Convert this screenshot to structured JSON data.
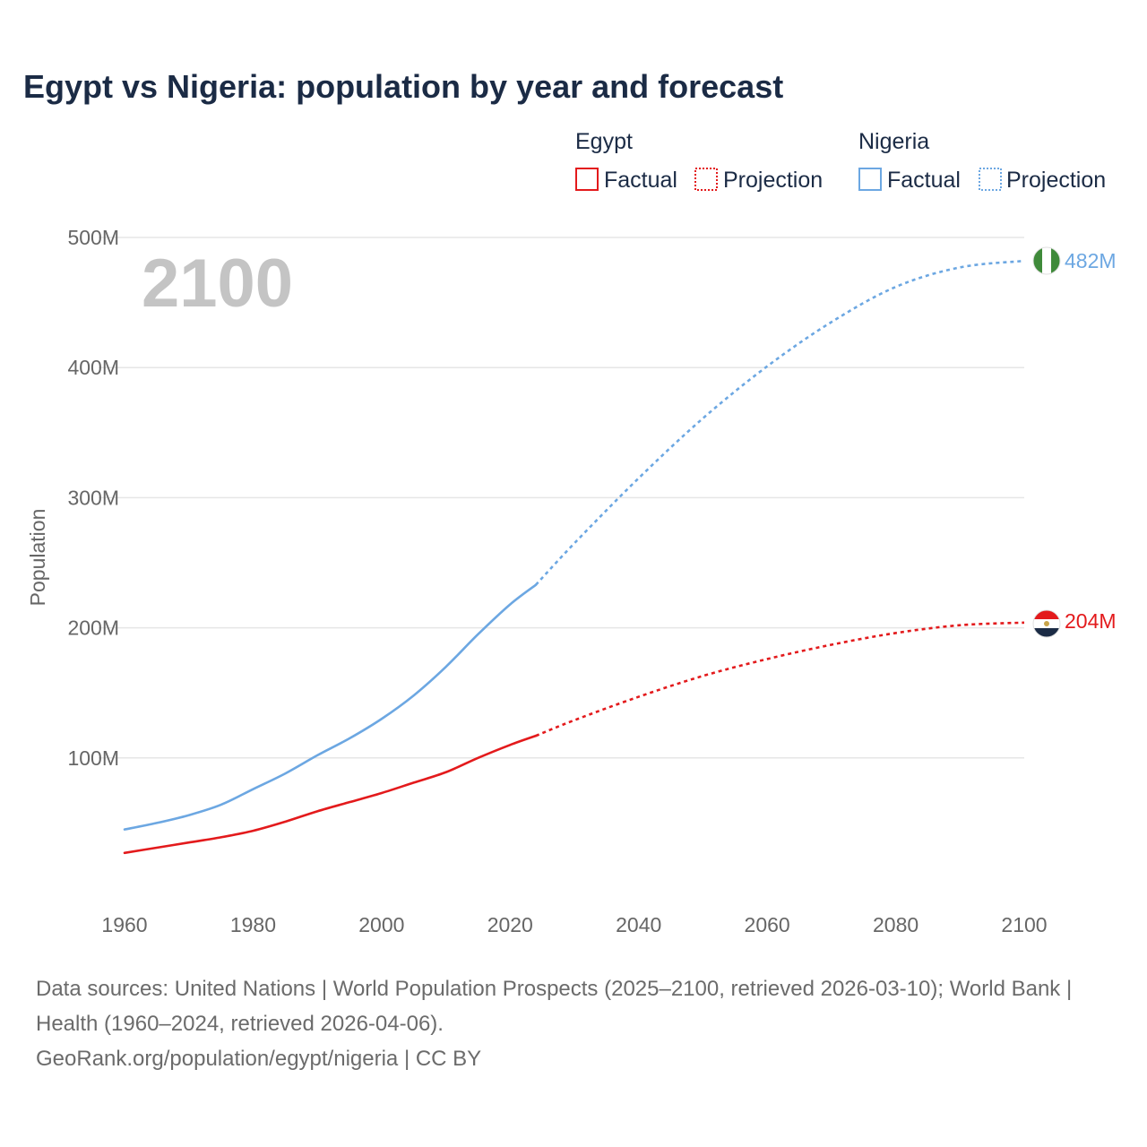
{
  "title": "Egypt vs Nigeria: population by year and forecast",
  "year_watermark": "2100",
  "legend": {
    "egypt": {
      "title": "Egypt",
      "factual": "Factual",
      "projection": "Projection"
    },
    "nigeria": {
      "title": "Nigeria",
      "factual": "Factual",
      "projection": "Projection"
    }
  },
  "colors": {
    "egypt": "#e31a1c",
    "nigeria": "#6ca7e2"
  },
  "end_labels": {
    "egypt": "204M",
    "nigeria": "482M"
  },
  "chart_data": {
    "type": "line",
    "title": "Egypt vs Nigeria: population by year and forecast",
    "xlabel": "",
    "ylabel": "Population",
    "xlim": [
      1960,
      2100
    ],
    "ylim": [
      0,
      500
    ],
    "x_ticks": [
      1960,
      1980,
      2000,
      2020,
      2040,
      2060,
      2080,
      2100
    ],
    "x_tick_labels": [
      "1960",
      "1980",
      "2000",
      "2020",
      "2040",
      "2060",
      "2080",
      "2100"
    ],
    "y_ticks": [
      100,
      200,
      300,
      400,
      500
    ],
    "y_tick_labels": [
      "100M",
      "200M",
      "300M",
      "400M",
      "500M"
    ],
    "series": [
      {
        "name": "Egypt",
        "color": "#e31a1c",
        "factual": {
          "x": [
            1960,
            1965,
            1970,
            1975,
            1980,
            1985,
            1990,
            1995,
            2000,
            2005,
            2010,
            2015,
            2020,
            2024
          ],
          "values": [
            27,
            31,
            35,
            39,
            44,
            51,
            59,
            66,
            73,
            81,
            89,
            100,
            110,
            117
          ]
        },
        "projection": {
          "x": [
            2024,
            2030,
            2040,
            2050,
            2060,
            2070,
            2080,
            2090,
            2100
          ],
          "values": [
            117,
            129,
            147,
            163,
            176,
            187,
            196,
            202,
            204
          ]
        }
      },
      {
        "name": "Nigeria",
        "color": "#6ca7e2",
        "factual": {
          "x": [
            1960,
            1965,
            1970,
            1975,
            1980,
            1985,
            1990,
            1995,
            2000,
            2005,
            2010,
            2015,
            2020,
            2024
          ],
          "values": [
            45,
            50,
            56,
            64,
            76,
            88,
            102,
            115,
            130,
            148,
            170,
            195,
            218,
            233
          ]
        },
        "projection": {
          "x": [
            2024,
            2030,
            2040,
            2050,
            2060,
            2070,
            2080,
            2090,
            2100
          ],
          "values": [
            233,
            265,
            315,
            361,
            401,
            435,
            462,
            477,
            482
          ]
        }
      }
    ],
    "end_values": {
      "Egypt": "204M",
      "Nigeria": "482M"
    }
  },
  "footer": {
    "sources": "Data sources: United Nations | World Population Prospects (2025–2100, retrieved 2026-03-10); World Bank | Health (1960–2024, retrieved 2026-04-06).",
    "credit": "GeoRank.org/population/egypt/nigeria | CC BY"
  }
}
